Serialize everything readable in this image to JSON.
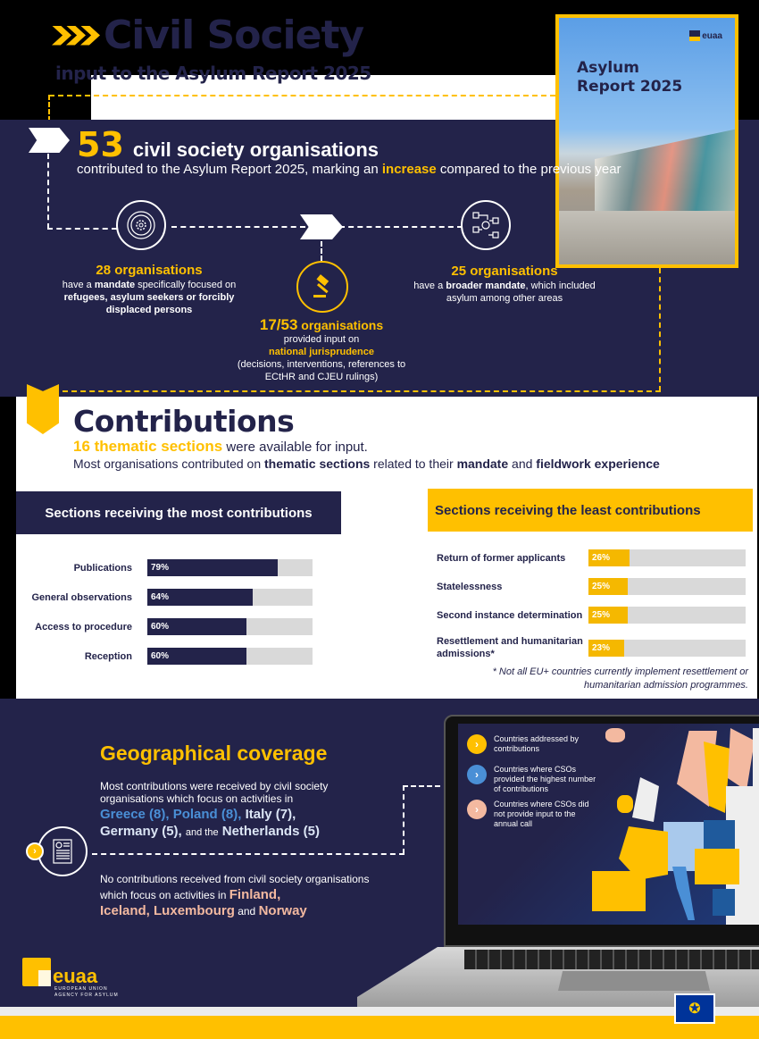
{
  "header": {
    "title": "Civil Society",
    "subtitle": "input to the Asylum Report 2025",
    "chevron_icon": "triple-chevron-right"
  },
  "cover": {
    "title_line1": "Asylum",
    "title_line2": "Report 2025",
    "logo_text": "euaa"
  },
  "summary": {
    "count": "53",
    "count_label": "civil society organisations",
    "text_before": "contributed to the Asylum Report 2025, marking an ",
    "highlight": "increase",
    "text_after": " compared to the previous year"
  },
  "stats": [
    {
      "icon": "target-gear-icon",
      "heading": "28 organisations",
      "pre": "have a ",
      "bold1": "mandate",
      "mid": " specifically focused on ",
      "bold2": "refugees, asylum seekers or forcibly displaced persons"
    },
    {
      "icon": "gavel-icon",
      "heading_num": "17/53",
      "heading_rest": " organisations",
      "line1": "provided input on",
      "highlight": "national jurisprudence",
      "line3": "(decisions, interventions, references to ECtHR and CJEU rulings)"
    },
    {
      "icon": "workflow-icon",
      "heading": "25 organisations",
      "pre": "have a ",
      "bold1": "broader mandate",
      "post": ", which included asylum among other areas"
    }
  ],
  "contributions": {
    "title": "Contributions",
    "sections_highlight": "16 thematic sections",
    "sections_rest": " were available for input.",
    "line2_a": "Most organisations contributed on ",
    "line2_b": "thematic sections",
    "line2_c": " related to their ",
    "line2_d": "mandate",
    "line2_e": " and ",
    "line2_f": "fieldwork experience",
    "most_title": "Sections receiving the most contributions",
    "least_title": "Sections receiving the least contributions",
    "footnote": "* Not all EU+ countries currently implement resettlement or humanitarian admission programmes."
  },
  "chart_data": [
    {
      "type": "bar",
      "title": "Sections receiving the most contributions",
      "categories": [
        "Publications",
        "General observations",
        "Access to procedure",
        "Reception"
      ],
      "values": [
        79,
        64,
        60,
        60
      ],
      "labels": [
        "79%",
        "64%",
        "60%",
        "60%"
      ],
      "unit": "%",
      "ylim": [
        0,
        100
      ],
      "color": "#23234a"
    },
    {
      "type": "bar",
      "title": "Sections receiving the least contributions",
      "categories": [
        "Return of former applicants",
        "Statelessness",
        "Second instance determination",
        "Resettlement and humanitarian admissions*"
      ],
      "values": [
        26,
        25,
        25,
        23
      ],
      "labels": [
        "26%",
        "25%",
        "25%",
        "23%"
      ],
      "unit": "%",
      "ylim": [
        0,
        100
      ],
      "color": "#f5b800"
    }
  ],
  "geo": {
    "title": "Geographical coverage",
    "p1": "Most contributions were received by civil society organisations which focus on activities in",
    "greece": "Greece (8),",
    "poland": "Poland (8),",
    "italy": "Italy (7),",
    "germany": "Germany (5),",
    "and_the": "and the",
    "netherlands": "Netherlands (5)",
    "p2": "No contributions received from civil society organisations which focus on activities in",
    "finland": "Finland,",
    "iceland_lux": "Iceland, Luxembourg",
    "and": "and",
    "norway": "Norway",
    "legend": [
      {
        "label": "Countries addressed by contributions",
        "color": "#ffc000"
      },
      {
        "label": "Countries where CSOs provided the highest number of contributions",
        "color": "#4a8fd6"
      },
      {
        "label": "Countries where CSOs did not provide input to the annual call",
        "color": "#f3b9a0"
      }
    ]
  },
  "footer": {
    "logo_word": "euaa",
    "logo_sub1": "EUROPEAN UNION",
    "logo_sub2": "AGENCY FOR ASYLUM",
    "eu_flag": "eu-flag-icon"
  },
  "colors": {
    "navy": "#23234a",
    "yellow": "#ffc000",
    "blue": "#4a8fd6",
    "peach": "#f3b9a0",
    "grey_track": "#d9d9d9"
  }
}
